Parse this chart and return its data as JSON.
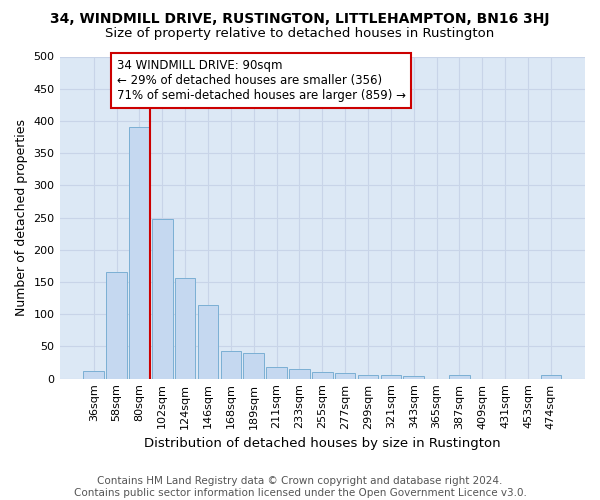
{
  "title": "34, WINDMILL DRIVE, RUSTINGTON, LITTLEHAMPTON, BN16 3HJ",
  "subtitle": "Size of property relative to detached houses in Rustington",
  "xlabel": "Distribution of detached houses by size in Rustington",
  "ylabel": "Number of detached properties",
  "categories": [
    "36sqm",
    "58sqm",
    "80sqm",
    "102sqm",
    "124sqm",
    "146sqm",
    "168sqm",
    "189sqm",
    "211sqm",
    "233sqm",
    "255sqm",
    "277sqm",
    "299sqm",
    "321sqm",
    "343sqm",
    "365sqm",
    "387sqm",
    "409sqm",
    "431sqm",
    "453sqm",
    "474sqm"
  ],
  "values": [
    12,
    165,
    390,
    248,
    157,
    114,
    43,
    40,
    18,
    15,
    10,
    9,
    6,
    5,
    4,
    0,
    5,
    0,
    0,
    0,
    5
  ],
  "bar_color": "#c5d8f0",
  "bar_edge_color": "#7bafd4",
  "vline_x_index": 2,
  "vline_color": "#cc0000",
  "annotation_text": "34 WINDMILL DRIVE: 90sqm\n← 29% of detached houses are smaller (356)\n71% of semi-detached houses are larger (859) →",
  "annotation_box_facecolor": "#ffffff",
  "annotation_box_edgecolor": "#cc0000",
  "ylim": [
    0,
    500
  ],
  "yticks": [
    0,
    50,
    100,
    150,
    200,
    250,
    300,
    350,
    400,
    450,
    500
  ],
  "grid_color": "#c8d4e8",
  "background_color": "#dce8f5",
  "footer": "Contains HM Land Registry data © Crown copyright and database right 2024.\nContains public sector information licensed under the Open Government Licence v3.0.",
  "title_fontsize": 10,
  "subtitle_fontsize": 9.5,
  "ylabel_fontsize": 9,
  "xlabel_fontsize": 9.5,
  "tick_fontsize": 8,
  "annotation_fontsize": 8.5,
  "footer_fontsize": 7.5
}
